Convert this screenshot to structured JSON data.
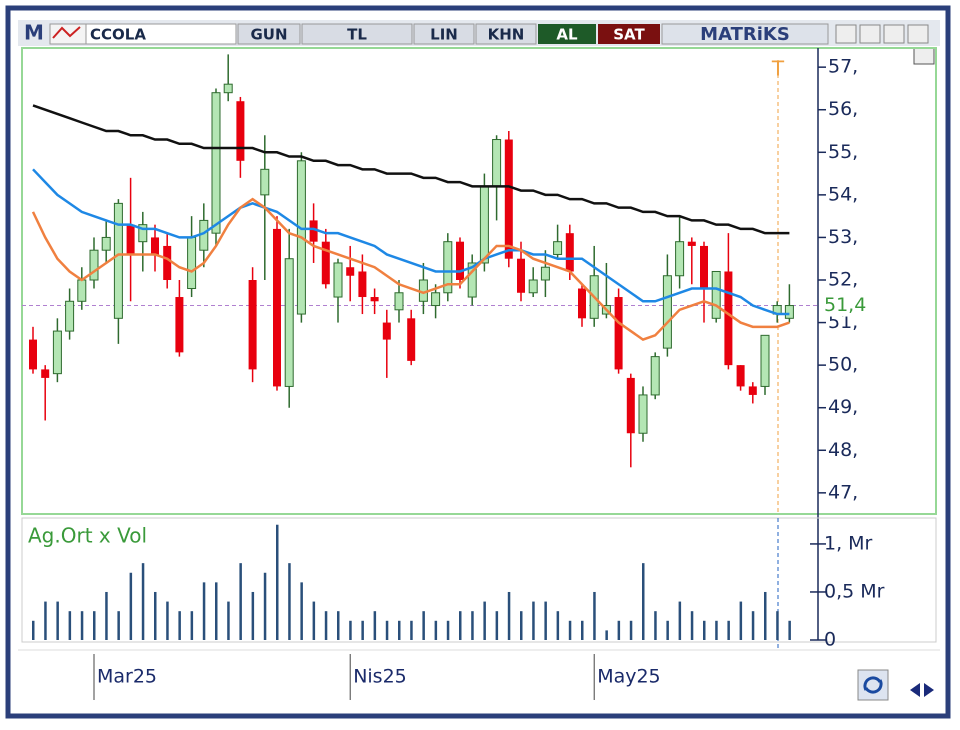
{
  "toolbar": {
    "logo": "M",
    "symbol": "CCOLA",
    "buttons": [
      "GUN",
      "TL",
      "LIN",
      "KHN"
    ],
    "buy": "AL",
    "sell": "SAT",
    "brand": "MATRiKS"
  },
  "chart_data": [
    {
      "type": "candlestick",
      "marker_label": "T",
      "categories": [
        null,
        null,
        null,
        null,
        null,
        "Mar25",
        null,
        null,
        null,
        null,
        null,
        null,
        null,
        null,
        null,
        null,
        null,
        null,
        null,
        null,
        null,
        null,
        null,
        null,
        null,
        null,
        "Nis25",
        null,
        null,
        null,
        null,
        null,
        null,
        null,
        null,
        null,
        null,
        null,
        null,
        null,
        null,
        null,
        null,
        null,
        null,
        null,
        "May25",
        null,
        null,
        null,
        null,
        null,
        null,
        null,
        null,
        null,
        null,
        null,
        null,
        null,
        null,
        null,
        null
      ],
      "open": [
        50.6,
        49.9,
        49.8,
        50.8,
        51.5,
        52.0,
        52.7,
        51.1,
        53.3,
        52.9,
        53.0,
        52.8,
        51.6,
        51.8,
        52.7,
        53.1,
        56.4,
        56.2,
        52.0,
        54.0,
        53.2,
        49.5,
        51.2,
        53.4,
        52.9,
        51.6,
        52.3,
        52.2,
        51.6,
        51.0,
        51.3,
        51.1,
        51.5,
        51.4,
        51.7,
        52.9,
        51.6,
        52.4,
        54.2,
        55.3,
        52.5,
        51.7,
        52.0,
        52.6,
        53.1,
        51.8,
        51.1,
        51.2,
        51.6,
        49.7,
        48.4,
        49.3,
        50.4,
        52.1,
        52.9,
        52.8,
        51.1,
        52.2,
        50.0,
        49.5,
        49.5,
        51.2,
        51.1
      ],
      "high": [
        50.9,
        50.0,
        51.1,
        51.8,
        52.3,
        53.0,
        53.4,
        53.9,
        54.4,
        53.6,
        53.3,
        53.1,
        52.0,
        53.5,
        53.8,
        56.5,
        57.3,
        56.3,
        52.3,
        55.4,
        53.5,
        53.2,
        55.0,
        53.8,
        53.2,
        52.5,
        52.8,
        52.6,
        51.8,
        51.3,
        52.0,
        51.3,
        52.4,
        51.9,
        53.1,
        53.0,
        52.6,
        54.5,
        55.4,
        55.5,
        52.9,
        52.3,
        52.7,
        53.3,
        53.3,
        51.9,
        52.8,
        52.4,
        51.8,
        49.8,
        49.5,
        50.3,
        52.6,
        53.5,
        53.0,
        52.9,
        52.2,
        53.1,
        50.0,
        49.6,
        50.7,
        51.5,
        51.9
      ],
      "low": [
        49.8,
        48.7,
        49.6,
        50.6,
        51.3,
        51.8,
        52.4,
        50.5,
        51.5,
        52.2,
        52.2,
        51.8,
        50.2,
        51.6,
        52.3,
        52.8,
        56.2,
        54.4,
        49.6,
        52.0,
        49.4,
        49.0,
        51.0,
        52.4,
        51.8,
        51.0,
        51.5,
        51.2,
        51.2,
        49.7,
        51.0,
        50.0,
        51.2,
        51.1,
        51.5,
        51.8,
        51.4,
        52.2,
        53.4,
        52.3,
        51.5,
        51.6,
        51.6,
        52.5,
        52.0,
        50.9,
        50.9,
        51.1,
        49.8,
        47.6,
        48.2,
        49.2,
        50.2,
        51.8,
        51.9,
        51.0,
        51.0,
        49.9,
        49.4,
        49.1,
        49.3,
        51.0,
        51.0
      ],
      "close": [
        49.9,
        49.7,
        50.8,
        51.5,
        52.0,
        52.7,
        53.0,
        53.8,
        52.6,
        53.3,
        52.6,
        52.0,
        50.3,
        53.0,
        53.4,
        56.4,
        56.6,
        54.8,
        49.9,
        54.6,
        49.5,
        52.5,
        54.8,
        52.9,
        51.9,
        52.4,
        52.1,
        51.6,
        51.5,
        50.6,
        51.7,
        50.1,
        52.0,
        51.7,
        52.9,
        52.0,
        52.4,
        54.2,
        55.3,
        52.5,
        51.7,
        52.0,
        52.3,
        52.9,
        52.2,
        51.1,
        52.1,
        51.4,
        49.9,
        48.4,
        49.3,
        50.2,
        52.1,
        52.9,
        52.8,
        51.8,
        52.2,
        50.0,
        49.5,
        49.3,
        50.7,
        51.4,
        51.4
      ],
      "up_color": "#b4e6b4",
      "up_edge": "#2e6a2e",
      "down_color": "#e8000e",
      "series": [
        {
          "color": "#111111",
          "values": [
            56.1,
            56.0,
            55.9,
            55.8,
            55.7,
            55.6,
            55.5,
            55.5,
            55.4,
            55.4,
            55.3,
            55.3,
            55.2,
            55.2,
            55.1,
            55.1,
            55.1,
            55.1,
            55.1,
            55.0,
            55.0,
            54.9,
            54.9,
            54.8,
            54.8,
            54.7,
            54.7,
            54.6,
            54.6,
            54.5,
            54.5,
            54.5,
            54.4,
            54.4,
            54.3,
            54.3,
            54.2,
            54.2,
            54.2,
            54.2,
            54.1,
            54.1,
            54.0,
            54.0,
            53.9,
            53.9,
            53.8,
            53.8,
            53.7,
            53.7,
            53.6,
            53.6,
            53.5,
            53.5,
            53.4,
            53.4,
            53.3,
            53.3,
            53.2,
            53.2,
            53.1,
            53.1,
            53.1
          ]
        },
        {
          "color": "#1e88e5",
          "values": [
            54.6,
            54.3,
            54.0,
            53.8,
            53.6,
            53.5,
            53.4,
            53.3,
            53.3,
            53.2,
            53.2,
            53.1,
            53.0,
            53.0,
            53.1,
            53.3,
            53.5,
            53.7,
            53.8,
            53.7,
            53.6,
            53.4,
            53.2,
            53.2,
            53.1,
            53.1,
            53.0,
            52.9,
            52.8,
            52.6,
            52.5,
            52.4,
            52.3,
            52.2,
            52.2,
            52.2,
            52.3,
            52.5,
            52.6,
            52.7,
            52.7,
            52.6,
            52.6,
            52.5,
            52.5,
            52.5,
            52.3,
            52.1,
            51.9,
            51.7,
            51.5,
            51.5,
            51.6,
            51.7,
            51.8,
            51.8,
            51.8,
            51.7,
            51.6,
            51.4,
            51.3,
            51.2,
            51.2
          ]
        },
        {
          "color": "#f08040",
          "values": [
            53.6,
            53.0,
            52.5,
            52.2,
            52.0,
            52.2,
            52.4,
            52.6,
            52.6,
            52.6,
            52.6,
            52.5,
            52.3,
            52.2,
            52.4,
            52.8,
            53.3,
            53.7,
            53.9,
            53.7,
            53.4,
            53.1,
            53.0,
            52.8,
            52.7,
            52.6,
            52.5,
            52.4,
            52.3,
            52.1,
            51.9,
            51.8,
            51.7,
            51.8,
            51.9,
            51.9,
            52.2,
            52.5,
            52.8,
            52.8,
            52.7,
            52.5,
            52.4,
            52.3,
            52.2,
            51.9,
            51.6,
            51.3,
            51.0,
            50.8,
            50.6,
            50.7,
            51.0,
            51.3,
            51.4,
            51.5,
            51.4,
            51.2,
            51.0,
            50.9,
            50.9,
            50.9,
            51.0
          ]
        }
      ],
      "last_price": {
        "value": 51.4,
        "label": "51,4"
      },
      "ylim": [
        46.55,
        57.45
      ],
      "yticks": [
        {
          "value": 47,
          "label": "47,"
        },
        {
          "value": 48,
          "label": "48,"
        },
        {
          "value": 49,
          "label": "49,"
        },
        {
          "value": 50,
          "label": "50,"
        },
        {
          "value": 51,
          "label": "51,"
        },
        {
          "value": 52,
          "label": "52,"
        },
        {
          "value": 53,
          "label": "53,"
        },
        {
          "value": 54,
          "label": "54,"
        },
        {
          "value": 55,
          "label": "55,"
        },
        {
          "value": 56,
          "label": "56,"
        },
        {
          "value": 57,
          "label": "57,"
        }
      ]
    },
    {
      "type": "bar",
      "title": "Ag.Ort x Vol",
      "color": "#2a4f7a",
      "values": [
        0.2,
        0.4,
        0.4,
        0.3,
        0.3,
        0.3,
        0.5,
        0.3,
        0.7,
        0.8,
        0.5,
        0.4,
        0.3,
        0.3,
        0.6,
        0.6,
        0.4,
        0.8,
        0.5,
        0.7,
        1.2,
        0.8,
        0.6,
        0.4,
        0.3,
        0.3,
        0.2,
        0.2,
        0.3,
        0.2,
        0.2,
        0.2,
        0.3,
        0.2,
        0.2,
        0.3,
        0.3,
        0.4,
        0.3,
        0.5,
        0.3,
        0.4,
        0.4,
        0.3,
        0.2,
        0.2,
        0.5,
        0.1,
        0.2,
        0.2,
        0.8,
        0.3,
        0.2,
        0.4,
        0.3,
        0.2,
        0.2,
        0.2,
        0.4,
        0.3,
        0.5,
        0.3,
        0.2
      ],
      "ylim": [
        0,
        1.27
      ],
      "yticks": [
        {
          "value": 0,
          "label": "0"
        },
        {
          "value": 0.5,
          "label": "0,5 Mr"
        },
        {
          "value": 1,
          "label": "1, Mr"
        }
      ]
    }
  ]
}
